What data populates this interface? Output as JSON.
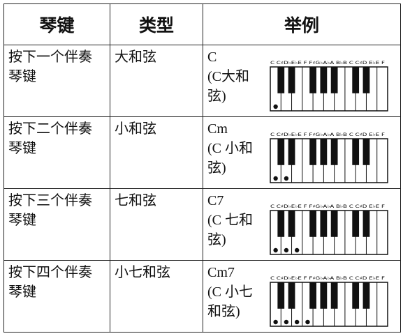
{
  "table": {
    "header": [
      "琴键",
      "类型",
      "举例"
    ],
    "key_labels": "C C♯D♭E♭E F F♯G♭A♭A B♭B C C♯D E♭E F",
    "rows": [
      {
        "key": "按下一个伴奏琴键",
        "type": "大和弦",
        "chord": "C",
        "desc": "(C大和弦)"
      },
      {
        "key": "按下二个伴奏琴键",
        "type": "小和弦",
        "chord": "Cm",
        "desc": "(C 小和弦)"
      },
      {
        "key": "按下三个伴奏琴键",
        "type": "七和弦",
        "chord": "C7",
        "desc": "(C 七和弦)"
      },
      {
        "key": "按下四个伴奏琴键",
        "type": "小七和弦",
        "chord": "Cm7",
        "desc": "(C 小七和弦)"
      }
    ]
  }
}
